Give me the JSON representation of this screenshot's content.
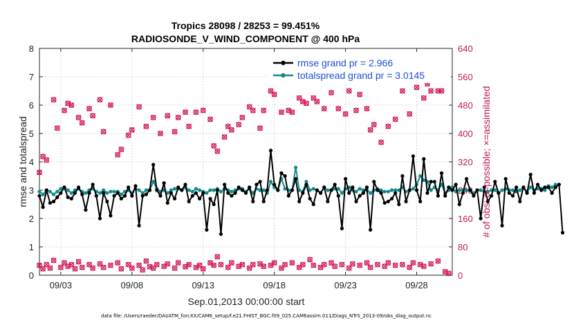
{
  "chart_data": {
    "type": "line",
    "title_line1": "Tropics 28098 / 28253 = 99.451%",
    "title_line2": "RADIOSONDE_V_WIND_COMPONENT @ 400 hPa",
    "xlabel": "Sep.01,2013 00:00:00 start",
    "ylabel_left": "rmse and totalspread",
    "ylabel_right": "# of obs: o=possible; ×=assimilated",
    "ylim_left": [
      0,
      8
    ],
    "ylim_right": [
      0,
      640
    ],
    "xlim_days": [
      1.5,
      30.5
    ],
    "x_ticks": [
      {
        "day": 3,
        "label": "09/03"
      },
      {
        "day": 8,
        "label": "09/08"
      },
      {
        "day": 13,
        "label": "09/13"
      },
      {
        "day": 18,
        "label": "09/18"
      },
      {
        "day": 23,
        "label": "09/23"
      },
      {
        "day": 28,
        "label": "09/28"
      }
    ],
    "y_ticks_left": [
      "0",
      "1",
      "2",
      "3",
      "4",
      "5",
      "6",
      "7",
      "8"
    ],
    "y_ticks_right": [
      "0",
      "80",
      "160",
      "240",
      "320",
      "400",
      "480",
      "560",
      "640"
    ],
    "x_start_day": 1.5,
    "x_step_day": 0.25,
    "colors": {
      "rmse": "#000000",
      "spread": "#138a8a",
      "obs": "#d11b5c",
      "legend_text": "#1d4fd6",
      "right_axis": "#c0175d"
    },
    "series": [
      {
        "name": "rmse grand pr = 2.966",
        "key": "rmse",
        "values": [
          2.8,
          2.4,
          3.0,
          2.55,
          2.6,
          2.75,
          2.9,
          3.1,
          2.75,
          2.7,
          2.9,
          3.1,
          2.85,
          2.3,
          2.9,
          3.2,
          2.8,
          2.0,
          2.9,
          2.6,
          2.1,
          2.8,
          2.9,
          2.7,
          2.8,
          3.1,
          2.8,
          3.15,
          1.75,
          2.8,
          2.85,
          3.0,
          3.9,
          3.0,
          2.8,
          3.25,
          2.55,
          2.9,
          2.7,
          3.1,
          3.0,
          3.2,
          2.6,
          2.8,
          2.9,
          2.7,
          2.9,
          1.6,
          2.7,
          2.5,
          3.0,
          1.45,
          3.2,
          2.9,
          2.8,
          2.9,
          3.1,
          3.0,
          2.9,
          3.1,
          2.6,
          3.2,
          3.3,
          2.6,
          3.0,
          4.4,
          3.2,
          3.0,
          3.6,
          3.5,
          2.8,
          3.0,
          3.4,
          2.6,
          2.9,
          3.2,
          2.7,
          2.5,
          3.0,
          2.9,
          3.1,
          2.6,
          3.0,
          3.2,
          2.8,
          1.65,
          3.4,
          2.9,
          3.1,
          2.6,
          2.8,
          2.9,
          3.1,
          1.6,
          3.3,
          3.0,
          2.9,
          2.55,
          2.6,
          2.7,
          2.9,
          2.5,
          3.5,
          2.6,
          3.0,
          4.2,
          3.0,
          2.6,
          4.1,
          2.9,
          3.3,
          3.3,
          2.8,
          3.6,
          2.8,
          3.1,
          3.0,
          3.2,
          2.5,
          2.9,
          3.4,
          3.0,
          2.8,
          3.0,
          2.0,
          3.1,
          2.6,
          2.8,
          3.3,
          2.9,
          1.75,
          3.4,
          2.9,
          2.8,
          3.1,
          2.6,
          3.1,
          2.9,
          3.55,
          2.9,
          3.2,
          3.0,
          3.1,
          3.1,
          2.9,
          3.1,
          3.2,
          1.5
        ],
        "color": "#000000"
      },
      {
        "name": "totalspread grand pr = 3.0145",
        "key": "spread",
        "values": [
          2.95,
          2.85,
          3.0,
          2.95,
          2.85,
          2.95,
          3.05,
          3.1,
          3.0,
          2.9,
          3.0,
          3.05,
          2.95,
          2.9,
          3.0,
          3.05,
          2.95,
          2.9,
          3.0,
          2.9,
          2.95,
          2.95,
          2.95,
          2.85,
          2.95,
          3.0,
          2.9,
          3.05,
          3.0,
          2.9,
          3.0,
          3.0,
          3.3,
          3.05,
          2.95,
          3.0,
          2.9,
          3.0,
          3.05,
          3.05,
          3.0,
          3.1,
          3.0,
          2.95,
          3.05,
          3.0,
          2.95,
          2.9,
          3.0,
          3.0,
          3.05,
          2.95,
          3.05,
          3.0,
          2.95,
          3.0,
          3.05,
          3.05,
          2.95,
          3.05,
          2.9,
          3.05,
          3.0,
          3.0,
          2.9,
          3.3,
          3.1,
          3.0,
          3.4,
          3.05,
          3.0,
          3.0,
          3.8,
          3.0,
          2.95,
          3.3,
          3.0,
          3.05,
          3.0,
          2.9,
          3.1,
          3.0,
          3.0,
          3.05,
          3.05,
          2.9,
          3.05,
          3.1,
          3.0,
          2.95,
          3.05,
          3.0,
          3.0,
          2.9,
          3.0,
          3.05,
          3.0,
          2.95,
          2.95,
          3.0,
          3.0,
          3.0,
          3.1,
          2.95,
          3.0,
          3.05,
          3.2,
          3.5,
          3.35,
          3.3,
          3.0,
          3.1,
          3.0,
          3.2,
          2.9,
          3.0,
          3.1,
          2.95,
          3.0,
          3.0,
          3.0,
          3.0,
          2.9,
          3.0,
          3.0,
          2.95,
          2.95,
          3.0,
          3.0,
          2.9,
          3.0,
          3.05,
          3.0,
          3.0,
          2.95,
          3.0,
          3.1,
          2.95,
          3.1,
          3.0,
          3.05,
          3.05,
          3.0,
          3.15,
          3.1,
          3.2
        ],
        "color": "#138a8a"
      }
    ],
    "obs_possible": [
      {
        "day": 1.5,
        "n": 28
      },
      {
        "day": 1.75,
        "n": 18
      },
      {
        "day": 2.0,
        "n": 30
      },
      {
        "day": 2.25,
        "n": 20
      },
      {
        "day": 2.5,
        "n": 42
      },
      {
        "day": 3.0,
        "n": 22
      },
      {
        "day": 3.25,
        "n": 35
      },
      {
        "day": 3.5,
        "n": 25
      },
      {
        "day": 3.75,
        "n": 30
      },
      {
        "day": 4.0,
        "n": 18
      },
      {
        "day": 4.25,
        "n": 38
      },
      {
        "day": 4.5,
        "n": 22
      },
      {
        "day": 5.0,
        "n": 30
      },
      {
        "day": 5.25,
        "n": 20
      },
      {
        "day": 5.75,
        "n": 32
      },
      {
        "day": 6.0,
        "n": 22
      },
      {
        "day": 6.5,
        "n": 28
      },
      {
        "day": 7.0,
        "n": 35
      },
      {
        "day": 7.25,
        "n": 18
      },
      {
        "day": 7.75,
        "n": 30
      },
      {
        "day": 8.0,
        "n": 20
      },
      {
        "day": 8.5,
        "n": 28
      },
      {
        "day": 8.75,
        "n": 15
      },
      {
        "day": 9.0,
        "n": 40
      },
      {
        "day": 9.25,
        "n": 24
      },
      {
        "day": 9.5,
        "n": 20
      },
      {
        "day": 9.75,
        "n": 30
      },
      {
        "day": 10.25,
        "n": 25
      },
      {
        "day": 10.5,
        "n": 32
      },
      {
        "day": 11.0,
        "n": 20
      },
      {
        "day": 11.25,
        "n": 35
      },
      {
        "day": 11.75,
        "n": 24
      },
      {
        "day": 12.0,
        "n": 30
      },
      {
        "day": 12.5,
        "n": 22
      },
      {
        "day": 12.75,
        "n": 28
      },
      {
        "day": 13.0,
        "n": 18
      },
      {
        "day": 13.5,
        "n": 35
      },
      {
        "day": 13.75,
        "n": 28
      },
      {
        "day": 14.0,
        "n": 52
      },
      {
        "day": 14.25,
        "n": 30
      },
      {
        "day": 14.75,
        "n": 22
      },
      {
        "day": 15.0,
        "n": 35
      },
      {
        "day": 15.5,
        "n": 25
      },
      {
        "day": 15.75,
        "n": 30
      },
      {
        "day": 16.25,
        "n": 20
      },
      {
        "day": 16.5,
        "n": 30
      },
      {
        "day": 17.0,
        "n": 32
      },
      {
        "day": 17.25,
        "n": 25
      },
      {
        "day": 17.75,
        "n": 28
      },
      {
        "day": 18.0,
        "n": 35
      },
      {
        "day": 18.5,
        "n": 20
      },
      {
        "day": 18.75,
        "n": 30
      },
      {
        "day": 19.25,
        "n": 35
      },
      {
        "day": 19.75,
        "n": 22
      },
      {
        "day": 20.0,
        "n": 30
      },
      {
        "day": 20.5,
        "n": 44
      },
      {
        "day": 20.75,
        "n": 28
      },
      {
        "day": 21.25,
        "n": 22
      },
      {
        "day": 21.5,
        "n": 30
      },
      {
        "day": 22.0,
        "n": 35
      },
      {
        "day": 22.25,
        "n": 25
      },
      {
        "day": 22.75,
        "n": 30
      },
      {
        "day": 23.25,
        "n": 20
      },
      {
        "day": 23.5,
        "n": 32
      },
      {
        "day": 24.0,
        "n": 28
      },
      {
        "day": 24.5,
        "n": 35
      },
      {
        "day": 24.75,
        "n": 22
      },
      {
        "day": 25.25,
        "n": 30
      },
      {
        "day": 25.75,
        "n": 25
      },
      {
        "day": 26.0,
        "n": 35
      },
      {
        "day": 26.5,
        "n": 28
      },
      {
        "day": 27.0,
        "n": 30
      },
      {
        "day": 27.5,
        "n": 22
      },
      {
        "day": 27.75,
        "n": 35
      },
      {
        "day": 28.25,
        "n": 30
      },
      {
        "day": 28.5,
        "n": 25
      },
      {
        "day": 29.0,
        "n": 32
      },
      {
        "day": 29.5,
        "n": 40
      },
      {
        "day": 30.0,
        "n": 10
      },
      {
        "day": 30.25,
        "n": 5
      }
    ],
    "obs_assimilated": [
      {
        "day": 1.5,
        "n": 290
      },
      {
        "day": 1.75,
        "n": 335
      },
      {
        "day": 2.0,
        "n": 325
      },
      {
        "day": 2.5,
        "n": 495
      },
      {
        "day": 2.75,
        "n": 415
      },
      {
        "day": 3.25,
        "n": 465
      },
      {
        "day": 3.5,
        "n": 485
      },
      {
        "day": 3.75,
        "n": 480
      },
      {
        "day": 4.25,
        "n": 445
      },
      {
        "day": 4.5,
        "n": 430
      },
      {
        "day": 5.0,
        "n": 470
      },
      {
        "day": 5.25,
        "n": 450
      },
      {
        "day": 5.75,
        "n": 495
      },
      {
        "day": 6.0,
        "n": 405
      },
      {
        "day": 6.5,
        "n": 480
      },
      {
        "day": 7.0,
        "n": 340
      },
      {
        "day": 7.25,
        "n": 355
      },
      {
        "day": 7.75,
        "n": 395
      },
      {
        "day": 8.0,
        "n": 410
      },
      {
        "day": 8.5,
        "n": 475
      },
      {
        "day": 9.0,
        "n": 420
      },
      {
        "day": 9.5,
        "n": 445
      },
      {
        "day": 10.0,
        "n": 400
      },
      {
        "day": 10.5,
        "n": 450
      },
      {
        "day": 11.0,
        "n": 405
      },
      {
        "day": 11.25,
        "n": 445
      },
      {
        "day": 11.75,
        "n": 460
      },
      {
        "day": 12.0,
        "n": 420
      },
      {
        "day": 12.5,
        "n": 460
      },
      {
        "day": 13.0,
        "n": 465
      },
      {
        "day": 13.5,
        "n": 440
      },
      {
        "day": 13.75,
        "n": 365
      },
      {
        "day": 14.0,
        "n": 350
      },
      {
        "day": 14.5,
        "n": 390
      },
      {
        "day": 14.75,
        "n": 420
      },
      {
        "day": 15.0,
        "n": 410
      },
      {
        "day": 15.5,
        "n": 425
      },
      {
        "day": 15.75,
        "n": 445
      },
      {
        "day": 16.25,
        "n": 475
      },
      {
        "day": 16.5,
        "n": 465
      },
      {
        "day": 17.0,
        "n": 415
      },
      {
        "day": 17.25,
        "n": 465
      },
      {
        "day": 17.75,
        "n": 520
      },
      {
        "day": 18.0,
        "n": 510
      },
      {
        "day": 18.5,
        "n": 460
      },
      {
        "day": 19.0,
        "n": 465
      },
      {
        "day": 19.25,
        "n": 460
      },
      {
        "day": 19.75,
        "n": 500
      },
      {
        "day": 20.0,
        "n": 490
      },
      {
        "day": 20.25,
        "n": 485
      },
      {
        "day": 20.75,
        "n": 500
      },
      {
        "day": 21.0,
        "n": 490
      },
      {
        "day": 21.5,
        "n": 470
      },
      {
        "day": 22.0,
        "n": 515
      },
      {
        "day": 22.5,
        "n": 470
      },
      {
        "day": 23.0,
        "n": 455
      },
      {
        "day": 23.25,
        "n": 520
      },
      {
        "day": 23.75,
        "n": 465
      },
      {
        "day": 24.0,
        "n": 510
      },
      {
        "day": 24.5,
        "n": 470
      },
      {
        "day": 24.75,
        "n": 410
      },
      {
        "day": 25.0,
        "n": 425
      },
      {
        "day": 25.5,
        "n": 375
      },
      {
        "day": 26.0,
        "n": 420
      },
      {
        "day": 26.5,
        "n": 440
      },
      {
        "day": 27.0,
        "n": 520
      },
      {
        "day": 27.5,
        "n": 455
      },
      {
        "day": 28.0,
        "n": 530
      },
      {
        "day": 28.5,
        "n": 500
      },
      {
        "day": 28.75,
        "n": 540
      },
      {
        "day": 29.0,
        "n": 520
      },
      {
        "day": 29.5,
        "n": 520
      },
      {
        "day": 29.75,
        "n": 520
      }
    ],
    "footer": "data file: /Users/raeder/DAI/ATM_forcXX/CAM6_setup/f.e21.FHIST_BGC.f09_025.CAM6assim.011/Diags_NTrS_2013-09/obs_diag_output.nc"
  }
}
